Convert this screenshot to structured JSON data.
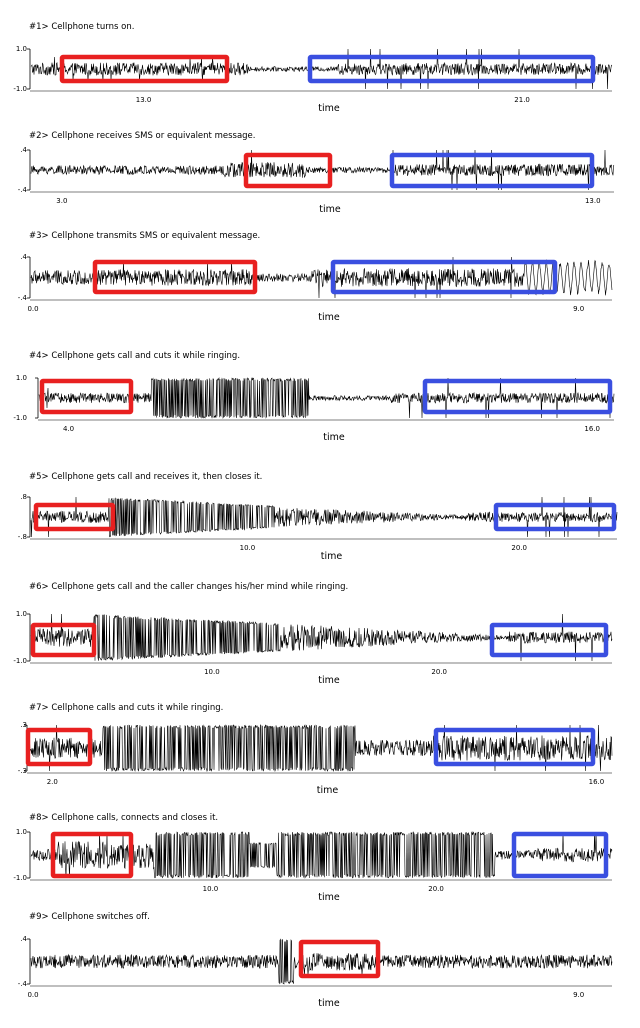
{
  "chart_data": [
    {
      "type": "line",
      "title": "#1>   Cellphone turns on.",
      "xlabel": "time",
      "y_ticks": [
        "1.0",
        "-1.0"
      ],
      "x_ticks": [
        {
          "label": "13.0",
          "value": 13.0
        },
        {
          "label": "21.0",
          "value": 21.0
        }
      ],
      "xlim": [
        10.6,
        22.9
      ],
      "segments": [
        {
          "from": 10.6,
          "to": 15.2,
          "amp": 0.32,
          "spikes": 0.3,
          "spikeAmp": 0.6
        },
        {
          "from": 15.2,
          "to": 17.1,
          "amp": 0.12
        },
        {
          "from": 17.1,
          "to": 22.9,
          "amp": 0.3,
          "spikes": 0.35,
          "spikeAmp": 1.0
        }
      ],
      "highlights": [
        {
          "color": "#e82020",
          "from": 10.8,
          "to": 15.3
        },
        {
          "color": "#3a4fe0",
          "from": 17.0,
          "to": 22.5
        }
      ]
    },
    {
      "type": "line",
      "title": "#2>   Cellphone receives SMS or equivalent message.",
      "xlabel": "time",
      "y_ticks": [
        ".4",
        "-.4"
      ],
      "x_ticks": [
        {
          "label": "3.0",
          "value": 3.0
        },
        {
          "label": "13.0",
          "value": 13.0
        }
      ],
      "xlim": [
        2.4,
        13.4
      ],
      "segments": [
        {
          "from": 2.4,
          "to": 6.0,
          "amp": 0.22,
          "spikes": 0.08,
          "spikeAmp": 0.7
        },
        {
          "from": 6.0,
          "to": 7.6,
          "amp": 0.4,
          "spikes": 0.2,
          "spikeAmp": 1.0
        },
        {
          "from": 7.6,
          "to": 9.2,
          "amp": 0.15
        },
        {
          "from": 9.2,
          "to": 13.4,
          "amp": 0.3,
          "spikes": 0.35,
          "spikeAmp": 1.0
        }
      ],
      "highlights": [
        {
          "color": "#e82020",
          "from": 6.0,
          "to": 7.6
        },
        {
          "color": "#3a4fe0",
          "from": 9.2,
          "to": 12.9
        }
      ]
    },
    {
      "type": "line",
      "title": "#3>   Cellphone transmits SMS or equivalent message.",
      "xlabel": "time",
      "y_ticks": [
        ".4",
        "-.4"
      ],
      "x_ticks": [
        {
          "label": "0.0",
          "value": 0.0
        },
        {
          "label": "9.0",
          "value": 9.0
        }
      ],
      "xlim": [
        -0.05,
        9.55
      ],
      "segments": [
        {
          "from": -0.05,
          "to": 1.0,
          "amp": 0.35,
          "spikes": 0.12,
          "spikeAmp": 0.6
        },
        {
          "from": 1.0,
          "to": 3.6,
          "amp": 0.4,
          "spikes": 0.15,
          "spikeAmp": 0.8
        },
        {
          "from": 3.6,
          "to": 4.6,
          "amp": 0.2
        },
        {
          "from": 4.6,
          "to": 8.1,
          "amp": 0.45,
          "spikes": 0.25,
          "spikeAmp": 1.0
        },
        {
          "from": 8.1,
          "to": 9.55,
          "amp": 0.9,
          "wave": 1
        }
      ],
      "highlights": [
        {
          "color": "#e82020",
          "from": 1.0,
          "to": 3.6
        },
        {
          "color": "#3a4fe0",
          "from": 4.8,
          "to": 8.4
        }
      ]
    },
    {
      "type": "line",
      "title": "#4>   Cellphone gets call and cuts it while ringing.",
      "xlabel": "time",
      "y_ticks": [
        "1.0",
        "-1.0"
      ],
      "x_ticks": [
        {
          "label": "4.0",
          "value": 4.0
        },
        {
          "label": "16.0",
          "value": 16.0
        }
      ],
      "xlim": [
        3.3,
        16.5
      ],
      "segments": [
        {
          "from": 3.3,
          "to": 5.9,
          "amp": 0.25,
          "spikes": 0.1,
          "spikeAmp": 0.5
        },
        {
          "from": 5.9,
          "to": 9.5,
          "amp": 1.0,
          "solid": 1
        },
        {
          "from": 9.5,
          "to": 11.4,
          "amp": 0.12
        },
        {
          "from": 11.4,
          "to": 16.5,
          "amp": 0.25,
          "spikes": 0.35,
          "spikeAmp": 1.0
        }
      ],
      "highlights": [
        {
          "color": "#e82020",
          "from": 3.5,
          "to": 5.9
        },
        {
          "color": "#3a4fe0",
          "from": 11.5,
          "to": 16.3
        }
      ]
    },
    {
      "type": "line",
      "title": "#5>   Cellphone gets call and receives it, then closes it.",
      "xlabel": "time",
      "y_ticks": [
        ".8",
        "-.8"
      ],
      "x_ticks": [
        {
          "label": "10.0",
          "value": 10.0
        },
        {
          "label": "20.0",
          "value": 20.0
        }
      ],
      "xlim": [
        2.0,
        23.6
      ],
      "segments": [
        {
          "from": 2.0,
          "to": 4.9,
          "amp": 0.3,
          "spikes": 0.3,
          "spikeAmp": 1.0
        },
        {
          "from": 4.9,
          "to": 11.0,
          "amp": 1.0,
          "decayTo": 0.55,
          "solid": 1
        },
        {
          "from": 11.0,
          "to": 18.0,
          "amp": 0.5,
          "decayTo": 0.1
        },
        {
          "from": 18.0,
          "to": 23.6,
          "amp": 0.25,
          "spikes": 0.35,
          "spikeAmp": 1.0
        }
      ],
      "highlights": [
        {
          "color": "#e82020",
          "from": 2.2,
          "to": 4.8
        },
        {
          "color": "#3a4fe0",
          "from": 19.0,
          "to": 23.2
        }
      ]
    },
    {
      "type": "line",
      "title": "#6>   Cellphone gets call and the caller changes his/her mind while ringing.",
      "xlabel": "time",
      "y_ticks": [
        "1.0",
        "-1.0"
      ],
      "x_ticks": [
        {
          "label": "10.0",
          "value": 10.0
        },
        {
          "label": "20.0",
          "value": 20.0
        }
      ],
      "xlim": [
        2.0,
        27.6
      ],
      "segments": [
        {
          "from": 2.0,
          "to": 4.8,
          "amp": 0.4,
          "spikes": 0.3,
          "spikeAmp": 1.0
        },
        {
          "from": 4.8,
          "to": 13.0,
          "amp": 1.0,
          "decayTo": 0.6,
          "solid": 1
        },
        {
          "from": 13.0,
          "to": 23.0,
          "amp": 0.6,
          "decayTo": 0.08
        },
        {
          "from": 23.0,
          "to": 27.6,
          "amp": 0.25,
          "spikes": 0.35,
          "spikeAmp": 1.0
        }
      ],
      "highlights": [
        {
          "color": "#e82020",
          "from": 2.2,
          "to": 4.8
        },
        {
          "color": "#3a4fe0",
          "from": 22.3,
          "to": 27.3
        }
      ]
    },
    {
      "type": "line",
      "title": "#7>   Cellphone calls and cuts it while ringing.",
      "xlabel": "time",
      "y_ticks": [
        ".3",
        "-.3"
      ],
      "x_ticks": [
        {
          "label": "2.0",
          "value": 2.0
        },
        {
          "label": "16.0",
          "value": 16.0
        }
      ],
      "xlim": [
        1.35,
        16.4
      ],
      "segments": [
        {
          "from": 1.35,
          "to": 3.3,
          "amp": 0.45,
          "spikes": 0.25,
          "spikeAmp": 1.0
        },
        {
          "from": 3.3,
          "to": 9.8,
          "amp": 1.0,
          "solid": 1
        },
        {
          "from": 9.8,
          "to": 11.8,
          "amp": 0.35
        },
        {
          "from": 11.8,
          "to": 16.4,
          "amp": 0.55,
          "spikes": 0.3,
          "spikeAmp": 1.0
        }
      ],
      "highlights": [
        {
          "color": "#e82020",
          "from": 1.5,
          "to": 3.3
        },
        {
          "color": "#3a4fe0",
          "from": 11.9,
          "to": 15.9
        }
      ]
    },
    {
      "type": "line",
      "title": "#8>   Cellphone calls, connects and closes it.",
      "xlabel": "time",
      "y_ticks": [
        "1.0",
        "-1.0"
      ],
      "x_ticks": [
        {
          "label": "10.0",
          "value": 10.0
        },
        {
          "label": "20.0",
          "value": 20.0
        }
      ],
      "xlim": [
        2.0,
        27.8
      ],
      "segments": [
        {
          "from": 2.0,
          "to": 3.2,
          "amp": 0.25
        },
        {
          "from": 3.2,
          "to": 7.5,
          "amp": 0.6,
          "spikes": 0.35,
          "spikeAmp": 1.0
        },
        {
          "from": 7.5,
          "to": 22.6,
          "amp": 1.0,
          "solid": 1,
          "dip": 1
        },
        {
          "from": 22.6,
          "to": 24.2,
          "amp": 0.2
        },
        {
          "from": 24.2,
          "to": 27.8,
          "amp": 0.3,
          "spikes": 0.35,
          "spikeAmp": 1.0
        }
      ],
      "highlights": [
        {
          "color": "#e82020",
          "from": 3.2,
          "to": 6.6
        },
        {
          "color": "#3a4fe0",
          "from": 24.2,
          "to": 27.3
        }
      ]
    },
    {
      "type": "line",
      "title": "#9>   Cellphone switches off.",
      "xlabel": "time",
      "y_ticks": [
        ".4",
        "-.4"
      ],
      "x_ticks": [
        {
          "label": "0.0",
          "value": 0.0
        },
        {
          "label": "9.0",
          "value": 9.0
        }
      ],
      "xlim": [
        -0.05,
        9.55
      ],
      "segments": [
        {
          "from": -0.05,
          "to": 4.05,
          "amp": 0.3
        },
        {
          "from": 4.05,
          "to": 4.3,
          "amp": 1.0,
          "solid": 1
        },
        {
          "from": 4.3,
          "to": 5.6,
          "amp": 0.4,
          "spikes": 0.15,
          "spikeAmp": 0.6
        },
        {
          "from": 5.6,
          "to": 9.55,
          "amp": 0.3
        }
      ],
      "highlights": [
        {
          "color": "#e82020",
          "from": 4.3,
          "to": 5.7
        }
      ]
    }
  ]
}
